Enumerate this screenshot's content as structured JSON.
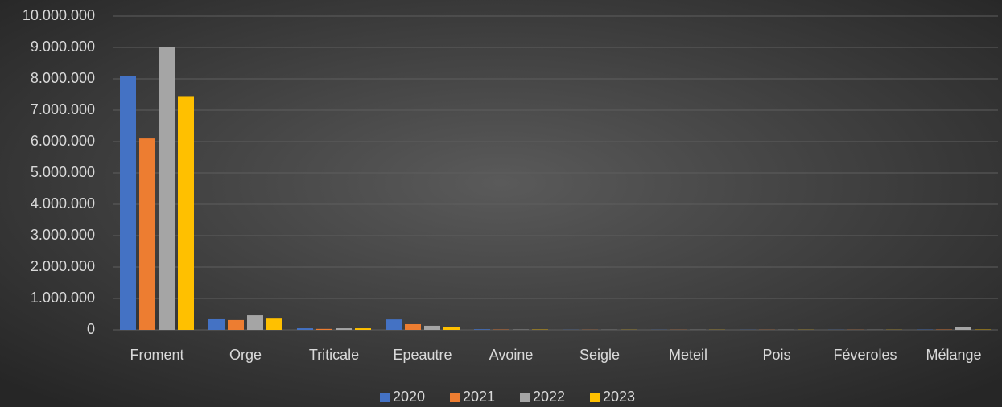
{
  "chart_data": {
    "type": "bar",
    "categories": [
      "Froment",
      "Orge",
      "Triticale",
      "Epeautre",
      "Avoine",
      "Seigle",
      "Meteil",
      "Pois",
      "Féveroles",
      "Mélange"
    ],
    "series": [
      {
        "name": "2020",
        "color": "#4472c4",
        "values": [
          8100000,
          360000,
          50000,
          330000,
          20000,
          5000,
          5000,
          5000,
          5000,
          10000
        ]
      },
      {
        "name": "2021",
        "color": "#ed7d31",
        "values": [
          6100000,
          310000,
          30000,
          180000,
          10000,
          5000,
          5000,
          5000,
          5000,
          10000
        ]
      },
      {
        "name": "2022",
        "color": "#a5a5a5",
        "values": [
          9000000,
          460000,
          50000,
          130000,
          10000,
          5000,
          5000,
          5000,
          5000,
          100000
        ]
      },
      {
        "name": "2023",
        "color": "#ffc000",
        "values": [
          7450000,
          380000,
          50000,
          80000,
          10000,
          5000,
          5000,
          5000,
          5000,
          10000
        ]
      }
    ],
    "ylim": [
      0,
      10000000
    ],
    "yticks": [
      0,
      {
        "value": 1000000,
        "label": "1.000.000"
      },
      {
        "value": 2000000,
        "label": "2.000.000"
      },
      {
        "value": 3000000,
        "label": "3.000.000"
      },
      {
        "value": 4000000,
        "label": "4.000.000"
      },
      {
        "value": 5000000,
        "label": "5.000.000"
      },
      {
        "value": 6000000,
        "label": "6.000.000"
      },
      {
        "value": 7000000,
        "label": "7.000.000"
      },
      {
        "value": 8000000,
        "label": "8.000.000"
      },
      {
        "value": 9000000,
        "label": "9.000.000"
      },
      {
        "value": 10000000,
        "label": "10.000.000"
      }
    ],
    "grid": true,
    "legend": "bottom"
  }
}
